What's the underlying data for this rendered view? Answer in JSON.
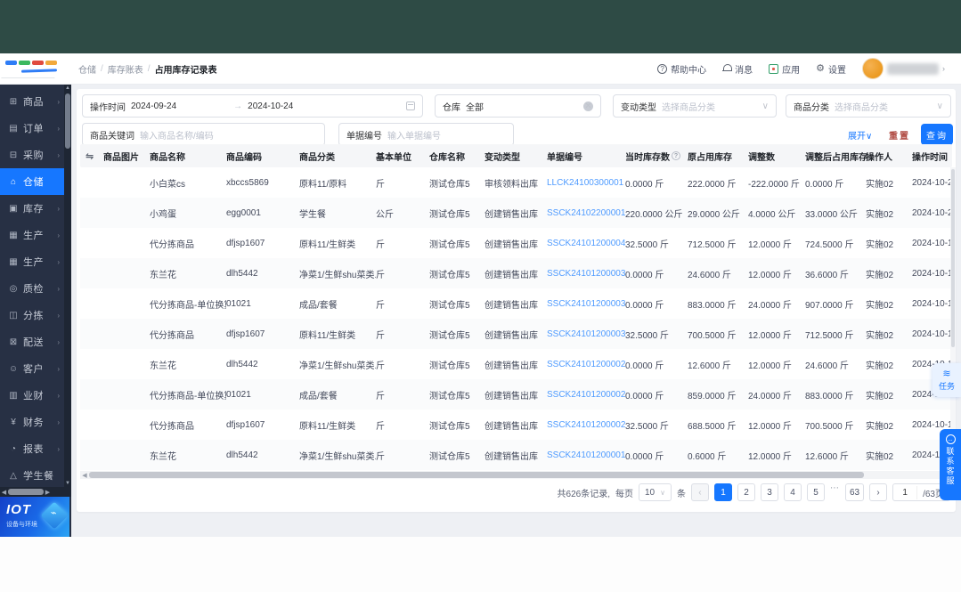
{
  "breadcrumb": {
    "items": [
      "仓储",
      "库存账表",
      "占用库存记录表"
    ]
  },
  "topnav": {
    "help": "帮助中心",
    "messages": "消息",
    "apps": "应用",
    "settings": "设置"
  },
  "sidebar": {
    "active_index": 3,
    "items": [
      {
        "label": "商品",
        "icon": "goods-grid-icon",
        "glyph": "⊞",
        "arrow": true
      },
      {
        "label": "订单",
        "icon": "orders-icon",
        "glyph": "▤",
        "arrow": true
      },
      {
        "label": "采购",
        "icon": "purchase-icon",
        "glyph": "⊟",
        "arrow": true
      },
      {
        "label": "仓储",
        "icon": "warehouse-icon",
        "glyph": "⌂",
        "arrow": true
      },
      {
        "label": "库存",
        "icon": "inventory-icon",
        "glyph": "▣",
        "arrow": true
      },
      {
        "label": "生产",
        "icon": "production-icon",
        "glyph": "▦",
        "arrow": true
      },
      {
        "label": "生产",
        "icon": "production-icon",
        "glyph": "▦",
        "arrow": true
      },
      {
        "label": "质检",
        "icon": "quality-check-icon",
        "glyph": "◎",
        "arrow": true
      },
      {
        "label": "分拣",
        "icon": "sorting-icon",
        "glyph": "◫",
        "arrow": true
      },
      {
        "label": "配送",
        "icon": "delivery-icon",
        "glyph": "⊠",
        "arrow": true
      },
      {
        "label": "客户",
        "icon": "customers-icon",
        "glyph": "☺",
        "arrow": true
      },
      {
        "label": "业财",
        "icon": "business-finance-icon",
        "glyph": "▥",
        "arrow": true
      },
      {
        "label": "财务",
        "icon": "finance-icon",
        "glyph": "¥",
        "arrow": true
      },
      {
        "label": "报表",
        "icon": "reports-icon",
        "glyph": "◔",
        "arrow": true
      },
      {
        "label": "学生餐",
        "icon": "student-meal-icon",
        "glyph": "△",
        "arrow": false
      }
    ]
  },
  "iot_logo": {
    "title": "IOT",
    "subtitle": "设备与环境"
  },
  "filters": {
    "time_label": "操作时间",
    "time_from": "2024-09-24",
    "time_arrow": "→",
    "time_to": "2024-10-24",
    "warehouse_label": "仓库",
    "warehouse_value": "全部",
    "change_type_label": "变动类型",
    "change_type_placeholder": "选择商品分类",
    "category_label": "商品分类",
    "category_placeholder": "选择商品分类",
    "keyword_label": "商品关键词",
    "keyword_placeholder": "输入商品名称/编码",
    "doc_no_label": "单据编号",
    "doc_no_placeholder": "输入单据编号",
    "expand": "展开∨",
    "reset": "重置",
    "search": "查询"
  },
  "table": {
    "columns": [
      "商品图片",
      "商品名称",
      "商品编码",
      "商品分类",
      "基本单位",
      "仓库名称",
      "变动类型",
      "单据编号",
      "当时库存数",
      "原占用库存",
      "调整数",
      "调整后占用库存",
      "操作人",
      "操作时间"
    ],
    "rows": [
      {
        "image": "cabbage",
        "name": "小白菜cs",
        "code": "xbccs5869",
        "category": "原料11/原料",
        "unit": "斤",
        "warehouse": "测试仓库5",
        "change_type": "审核领料出库",
        "doc_no": "LLCK24100300001",
        "stock_at_time": "0.0000 斤",
        "prev_occupied": "222.0000 斤",
        "adjustment": "-222.0000 斤",
        "after_occupied": "0.0000 斤",
        "operator": "实施02",
        "op_time": "2024-10-2"
      },
      {
        "image": "placeholder",
        "name": "小鸡蛋",
        "code": "egg0001",
        "category": "学生餐",
        "unit": "公斤",
        "warehouse": "测试仓库5",
        "change_type": "创建销售出库",
        "doc_no": "SSCK24102200001",
        "stock_at_time": "220.0000 公斤",
        "prev_occupied": "29.0000 公斤",
        "adjustment": "4.0000 公斤",
        "after_occupied": "33.0000 公斤",
        "operator": "实施02",
        "op_time": "2024-10-2"
      },
      {
        "image": "placeholder",
        "name": "代分拣商品",
        "code": "dfjsp1607",
        "category": "原料11/生鲜类",
        "unit": "斤",
        "warehouse": "测试仓库5",
        "change_type": "创建销售出库",
        "doc_no": "SSCK24101200004",
        "stock_at_time": "32.5000 斤",
        "prev_occupied": "712.5000 斤",
        "adjustment": "12.0000 斤",
        "after_occupied": "724.5000 斤",
        "operator": "实施02",
        "op_time": "2024-10-1"
      },
      {
        "image": "photo",
        "name": "东兰花",
        "code": "dlh5442",
        "category": "净菜1/生鲜shu菜类..",
        "unit": "斤",
        "warehouse": "测试仓库5",
        "change_type": "创建销售出库",
        "doc_no": "SSCK24101200003",
        "stock_at_time": "0.0000 斤",
        "prev_occupied": "24.6000 斤",
        "adjustment": "12.0000 斤",
        "after_occupied": "36.6000 斤",
        "operator": "实施02",
        "op_time": "2024-10-1"
      },
      {
        "image": "placeholder",
        "name": "代分拣商品-单位换算",
        "code": "01021",
        "category": "成品/套餐",
        "unit": "斤",
        "warehouse": "测试仓库5",
        "change_type": "创建销售出库",
        "doc_no": "SSCK24101200003",
        "stock_at_time": "0.0000 斤",
        "prev_occupied": "883.0000 斤",
        "adjustment": "24.0000 斤",
        "after_occupied": "907.0000 斤",
        "operator": "实施02",
        "op_time": "2024-10-1"
      },
      {
        "image": "placeholder",
        "name": "代分拣商品",
        "code": "dfjsp1607",
        "category": "原料11/生鲜类",
        "unit": "斤",
        "warehouse": "测试仓库5",
        "change_type": "创建销售出库",
        "doc_no": "SSCK24101200003",
        "stock_at_time": "32.5000 斤",
        "prev_occupied": "700.5000 斤",
        "adjustment": "12.0000 斤",
        "after_occupied": "712.5000 斤",
        "operator": "实施02",
        "op_time": "2024-10-1"
      },
      {
        "image": "photo",
        "name": "东兰花",
        "code": "dlh5442",
        "category": "净菜1/生鲜shu菜类..",
        "unit": "斤",
        "warehouse": "测试仓库5",
        "change_type": "创建销售出库",
        "doc_no": "SSCK24101200002",
        "stock_at_time": "0.0000 斤",
        "prev_occupied": "12.6000 斤",
        "adjustment": "12.0000 斤",
        "after_occupied": "24.6000 斤",
        "operator": "实施02",
        "op_time": "2024-10-1"
      },
      {
        "image": "placeholder",
        "name": "代分拣商品-单位换算",
        "code": "01021",
        "category": "成品/套餐",
        "unit": "斤",
        "warehouse": "测试仓库5",
        "change_type": "创建销售出库",
        "doc_no": "SSCK24101200002",
        "stock_at_time": "0.0000 斤",
        "prev_occupied": "859.0000 斤",
        "adjustment": "24.0000 斤",
        "after_occupied": "883.0000 斤",
        "operator": "实施02",
        "op_time": "2024-10-1"
      },
      {
        "image": "placeholder",
        "name": "代分拣商品",
        "code": "dfjsp1607",
        "category": "原料11/生鲜类",
        "unit": "斤",
        "warehouse": "测试仓库5",
        "change_type": "创建销售出库",
        "doc_no": "SSCK24101200002",
        "stock_at_time": "32.5000 斤",
        "prev_occupied": "688.5000 斤",
        "adjustment": "12.0000 斤",
        "after_occupied": "700.5000 斤",
        "operator": "实施02",
        "op_time": "2024-10-1"
      },
      {
        "image": "photo",
        "name": "东兰花",
        "code": "dlh5442",
        "category": "净菜1/生鲜shu菜类..",
        "unit": "斤",
        "warehouse": "测试仓库5",
        "change_type": "创建销售出库",
        "doc_no": "SSCK24101200001",
        "stock_at_time": "0.0000 斤",
        "prev_occupied": "0.6000 斤",
        "adjustment": "12.0000 斤",
        "after_occupied": "12.6000 斤",
        "operator": "实施02",
        "op_time": "2024-10"
      }
    ]
  },
  "pagination": {
    "total_text": "共626条记录,",
    "per_page_label": "每页",
    "per_page": "10",
    "unit": "条",
    "pages": [
      "1",
      "2",
      "3",
      "4",
      "5",
      "...",
      "63"
    ],
    "active_page": "1",
    "jump_value": "1",
    "total_pages": "/63页"
  },
  "floaters": {
    "task": "任务",
    "support": "联系客服"
  },
  "colors": {
    "accent": "#1677ff",
    "link": "#4f9bff",
    "top_band": "#2e4b45",
    "sidebar_bg": "#273044",
    "reset_text": "#b04a42"
  }
}
